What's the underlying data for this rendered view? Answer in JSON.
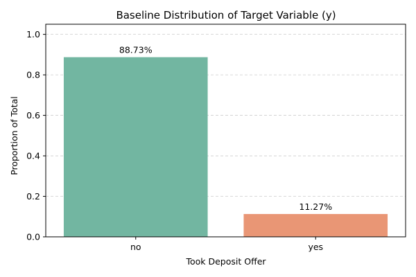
{
  "chart_data": {
    "type": "bar",
    "title": "Baseline Distribution of Target Variable (y)",
    "xlabel": "Took Deposit Offer",
    "ylabel": "Proportion of Total",
    "categories": [
      "no",
      "yes"
    ],
    "values": [
      0.8873,
      0.1127
    ],
    "data_labels": [
      "88.73%",
      "11.27%"
    ],
    "colors": [
      "#72b6a1",
      "#e99675"
    ],
    "ylim": [
      0,
      1.05
    ],
    "yticks": [
      0.0,
      0.2,
      0.4,
      0.6,
      0.8,
      1.0
    ],
    "ytick_labels": [
      "0.0",
      "0.2",
      "0.4",
      "0.6",
      "0.8",
      "1.0"
    ],
    "grid": "y-dashed",
    "legend": "none"
  }
}
